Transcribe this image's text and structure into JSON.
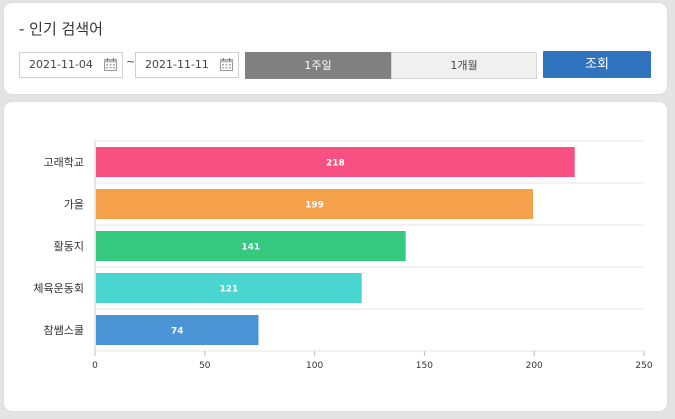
{
  "header": {
    "title": "- 인기 검색어"
  },
  "filters": {
    "start_date": "2021-11-04",
    "separator": "~",
    "end_date": "2021-11-11",
    "period_options": [
      {
        "label": "1주일",
        "selected": true
      },
      {
        "label": "1개월",
        "selected": false
      }
    ],
    "search_label": "조회"
  },
  "colors": {
    "selected_segment": "#808080",
    "search_button": "#2f73bf"
  },
  "chart_data": {
    "type": "bar",
    "orientation": "horizontal",
    "categories": [
      "고래학교",
      "가을",
      "활동지",
      "체육운동회",
      "참쌤스쿨"
    ],
    "values": [
      218,
      199,
      141,
      121,
      74
    ],
    "colors": [
      "#f74f82",
      "#f5a04a",
      "#35c87f",
      "#4ad5d0",
      "#4a93d5"
    ],
    "xlim": [
      0,
      250
    ],
    "xticks": [
      0,
      50,
      100,
      150,
      200,
      250
    ],
    "grid": true,
    "data_labels": true
  }
}
